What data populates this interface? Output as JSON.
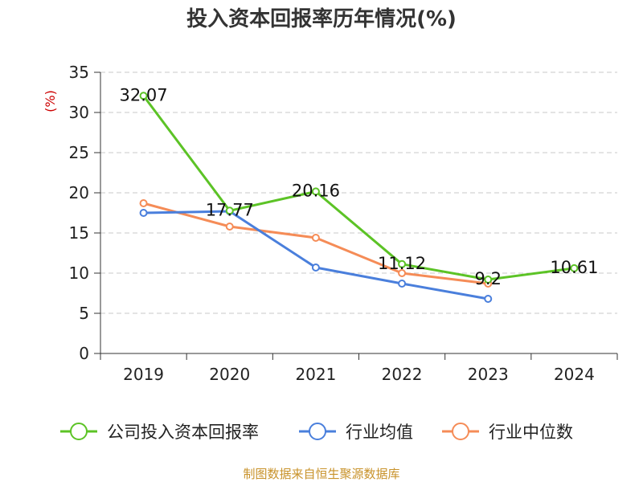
{
  "chart_data": {
    "type": "line",
    "title": "投入资本回报率历年情况(%)",
    "ylabel": "(%)",
    "categories": [
      "2019",
      "2020",
      "2021",
      "2022",
      "2023",
      "2024"
    ],
    "yticks": [
      "0",
      "5",
      "10",
      "15",
      "20",
      "25",
      "30",
      "35"
    ],
    "ylim": [
      0,
      35
    ],
    "grid": "horizontal-dashed",
    "legend_position": "bottom",
    "series": [
      {
        "name": "公司投入资本回报率",
        "color": "#5cc326",
        "values": [
          32.07,
          17.77,
          20.16,
          11.12,
          9.2,
          10.61
        ],
        "labels": [
          "32.07",
          "17.77",
          "20.16",
          "11.12",
          "9.2",
          "10.61"
        ]
      },
      {
        "name": "行业均值",
        "color": "#4a7fdc",
        "values": [
          17.5,
          17.7,
          10.7,
          8.7,
          6.8,
          null
        ]
      },
      {
        "name": "行业中位数",
        "color": "#f58c57",
        "values": [
          18.7,
          15.8,
          14.4,
          10.0,
          8.7,
          null
        ]
      }
    ],
    "source": "制图数据来自恒生聚源数据库"
  }
}
